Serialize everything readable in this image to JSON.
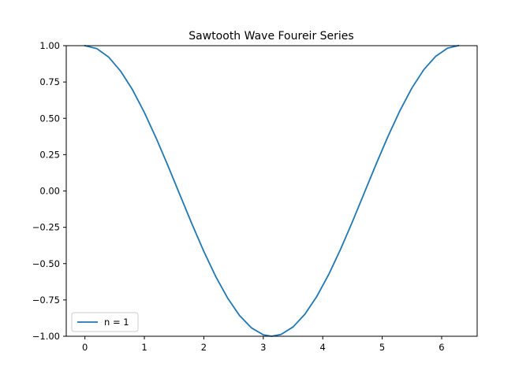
{
  "chart_data": {
    "type": "line",
    "title": "Sawtooth Wave Foureir Series",
    "xlabel": "",
    "ylabel": "",
    "xlim": [
      -0.3141592653589793,
      6.5973445725385655
    ],
    "ylim": [
      -1.0,
      1.0
    ],
    "xticks": [
      0,
      1,
      2,
      3,
      4,
      5,
      6
    ],
    "xtick_labels": [
      "0",
      "1",
      "2",
      "3",
      "4",
      "5",
      "6"
    ],
    "yticks": [
      -1.0,
      -0.75,
      -0.5,
      -0.25,
      0.0,
      0.25,
      0.5,
      0.75,
      1.0
    ],
    "ytick_labels": [
      "−1.00",
      "−0.75",
      "−0.50",
      "−0.25",
      "0.00",
      "0.25",
      "0.50",
      "0.75",
      "1.00"
    ],
    "grid": false,
    "legend_position": "lower left",
    "series": [
      {
        "name": "n = 1",
        "color": "#1f77b4",
        "x": [
          0.0,
          0.2,
          0.4,
          0.6,
          0.8,
          1.0,
          1.2,
          1.4,
          1.6,
          1.8,
          2.0,
          2.2,
          2.4,
          2.6,
          2.8,
          3.0,
          3.14,
          3.3,
          3.5,
          3.7,
          3.9,
          4.1,
          4.3,
          4.5,
          4.7,
          4.9,
          5.1,
          5.3,
          5.5,
          5.7,
          5.9,
          6.1,
          6.28
        ],
        "y": [
          1.0,
          0.98,
          0.921,
          0.825,
          0.697,
          0.54,
          0.362,
          0.17,
          -0.029,
          -0.227,
          -0.416,
          -0.589,
          -0.737,
          -0.857,
          -0.942,
          -0.99,
          -1.0,
          -0.987,
          -0.936,
          -0.848,
          -0.726,
          -0.575,
          -0.401,
          -0.211,
          -0.012,
          0.187,
          0.378,
          0.554,
          0.709,
          0.835,
          0.927,
          0.983,
          1.0
        ]
      }
    ]
  }
}
